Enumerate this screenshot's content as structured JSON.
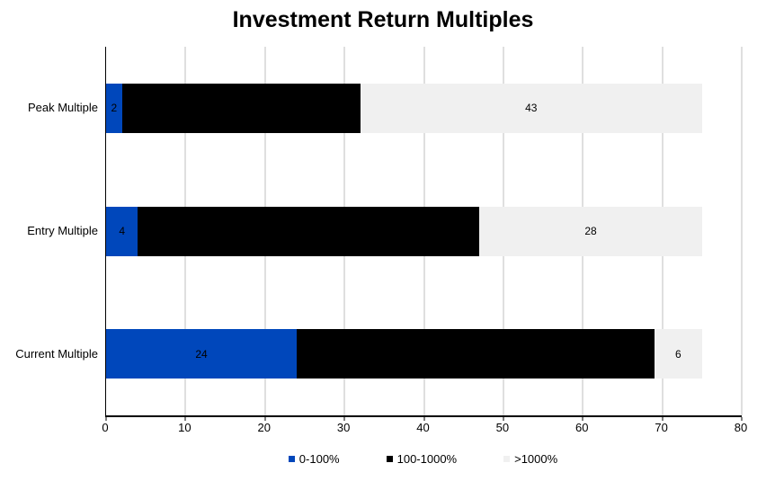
{
  "title": "Investment Return Multiples",
  "chart_data": {
    "type": "bar",
    "orientation": "horizontal",
    "stacked": true,
    "title": "Investment Return Multiples",
    "categories": [
      "Peak Multiple",
      "Entry Multiple",
      "Current Multiple"
    ],
    "series": [
      {
        "name": "0-100%",
        "color": "#0047BB",
        "values": [
          2,
          4,
          24
        ],
        "labels_visible": true
      },
      {
        "name": "100-1000%",
        "color": "#000000",
        "values": [
          30,
          43,
          45
        ],
        "labels_visible": false
      },
      {
        "name": ">1000%",
        "color": "#F0F0F0",
        "values": [
          43,
          28,
          6
        ],
        "labels_visible": true
      }
    ],
    "bar_totals": [
      75,
      75,
      75
    ],
    "xlabel": "",
    "ylabel": "",
    "xlim": [
      0,
      80
    ],
    "x_ticks": [
      0,
      10,
      20,
      30,
      40,
      50,
      60,
      70,
      80
    ],
    "grid": "vertical gridlines on",
    "legend_position": "bottom",
    "legend": [
      "0-100%",
      "100-1000%",
      ">1000%"
    ],
    "note": "value labels on 100-1000% segments are not visible (black text on black fill)"
  },
  "colors": {
    "background": "#FFFFFF",
    "series_blue": "#0047BB",
    "series_black": "#000000",
    "series_light_gray": "#F0F0F0",
    "gridline": "#BFBFBF",
    "axis_line": "#000000",
    "text": "#000000"
  }
}
